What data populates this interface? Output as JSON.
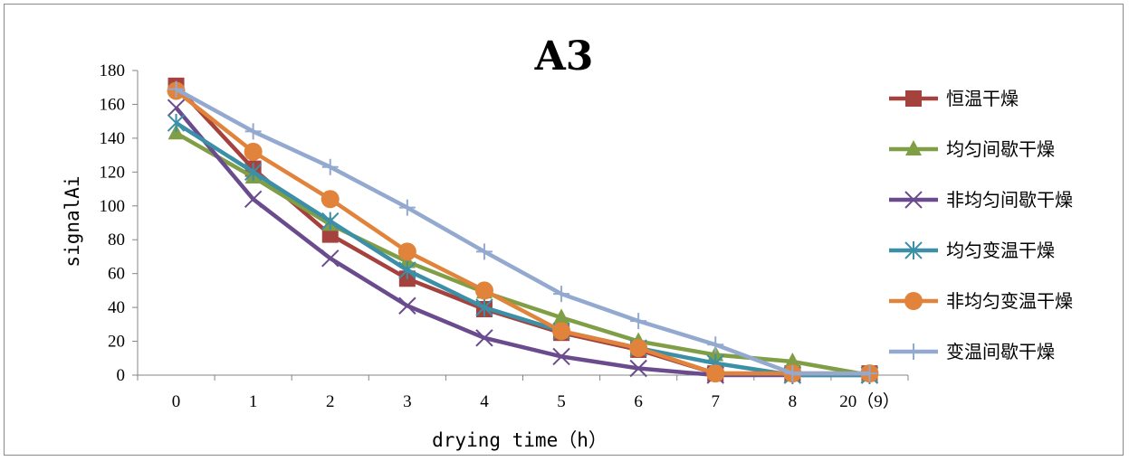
{
  "chart_data": {
    "type": "line",
    "title": "A3",
    "xlabel": "drying time（h）",
    "ylabel": "signalAi",
    "categories": [
      "0",
      "1",
      "2",
      "3",
      "4",
      "5",
      "6",
      "7",
      "8",
      "20（9）"
    ],
    "ylim": [
      0,
      180
    ],
    "yticks": [
      0,
      20,
      40,
      60,
      80,
      100,
      120,
      140,
      160,
      180
    ],
    "grid": false,
    "legend_position": "right",
    "series": [
      {
        "name": "恒温干燥",
        "color": "#a5423e",
        "marker": "square",
        "values": [
          171,
          122,
          83,
          57,
          39,
          25,
          15,
          1,
          1,
          1
        ]
      },
      {
        "name": "均匀间歇干燥",
        "color": "#7f9e45",
        "marker": "triangle",
        "values": [
          143,
          117,
          89,
          67,
          49,
          34,
          20,
          12,
          8,
          0
        ]
      },
      {
        "name": "非均匀间歇干燥",
        "color": "#6a4c8e",
        "marker": "x",
        "values": [
          158,
          104,
          69,
          41,
          22,
          11,
          4,
          0,
          0,
          0
        ]
      },
      {
        "name": "均匀变温干燥",
        "color": "#3b8fa6",
        "marker": "asterisk",
        "values": [
          149,
          120,
          91,
          62,
          40,
          26,
          16,
          7,
          0,
          0
        ]
      },
      {
        "name": "非均匀变温干燥",
        "color": "#e1833a",
        "marker": "circle",
        "values": [
          168,
          132,
          104,
          73,
          50,
          26,
          16,
          1,
          1,
          1
        ]
      },
      {
        "name": "变温间歇干燥",
        "color": "#93a9cf",
        "marker": "plus",
        "values": [
          169,
          144,
          123,
          99,
          73,
          48,
          32,
          18,
          1,
          1
        ]
      }
    ]
  }
}
